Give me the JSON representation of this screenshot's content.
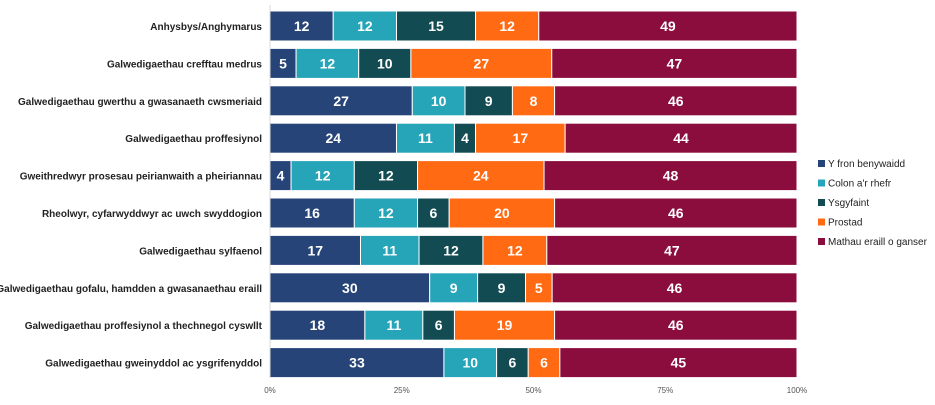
{
  "chart_data": {
    "type": "bar",
    "orientation": "horizontal",
    "stacked": "percent",
    "categories": [
      "Anhysbys/Anghymarus",
      "Galwedigaethau crefftau medrus",
      "Galwedigaethau gwerthu a gwasanaeth cwsmeriaid",
      "Galwedigaethau proffesiynol",
      "Gweithredwyr prosesau peirianwaith a pheiriannau",
      "Rheolwyr, cyfarwyddwyr ac uwch swyddogion",
      "Galwedigaethau sylfaenol",
      "Galwedigaethau gofalu, hamdden a gwasanaethau eraill",
      "Galwedigaethau proffesiynol a thechnegol cyswllt",
      "Galwedigaethau gweinyddol ac ysgrifenyddol"
    ],
    "series": [
      {
        "name": "Y fron benywaidd",
        "color": "#264478",
        "values": [
          12,
          5,
          27,
          24,
          4,
          16,
          17,
          30,
          18,
          33
        ]
      },
      {
        "name": "Colon a'r rhefr",
        "color": "#26A4B8",
        "values": [
          12,
          12,
          10,
          11,
          12,
          12,
          11,
          9,
          11,
          10
        ]
      },
      {
        "name": "Ysgyfaint",
        "color": "#134B52",
        "values": [
          15,
          10,
          9,
          4,
          12,
          6,
          12,
          9,
          6,
          6
        ]
      },
      {
        "name": "Prostad",
        "color": "#FF6A13",
        "values": [
          12,
          27,
          8,
          17,
          24,
          20,
          12,
          5,
          19,
          6
        ]
      },
      {
        "name": "Mathau eraill o ganser",
        "color": "#8B0D3E",
        "values": [
          49,
          47,
          46,
          44,
          48,
          46,
          47,
          46,
          46,
          45
        ]
      }
    ],
    "xlim": [
      0,
      100
    ],
    "xticks": [
      "0%",
      "25%",
      "50%",
      "75%",
      "100%"
    ],
    "grid": false,
    "legend": "right"
  }
}
